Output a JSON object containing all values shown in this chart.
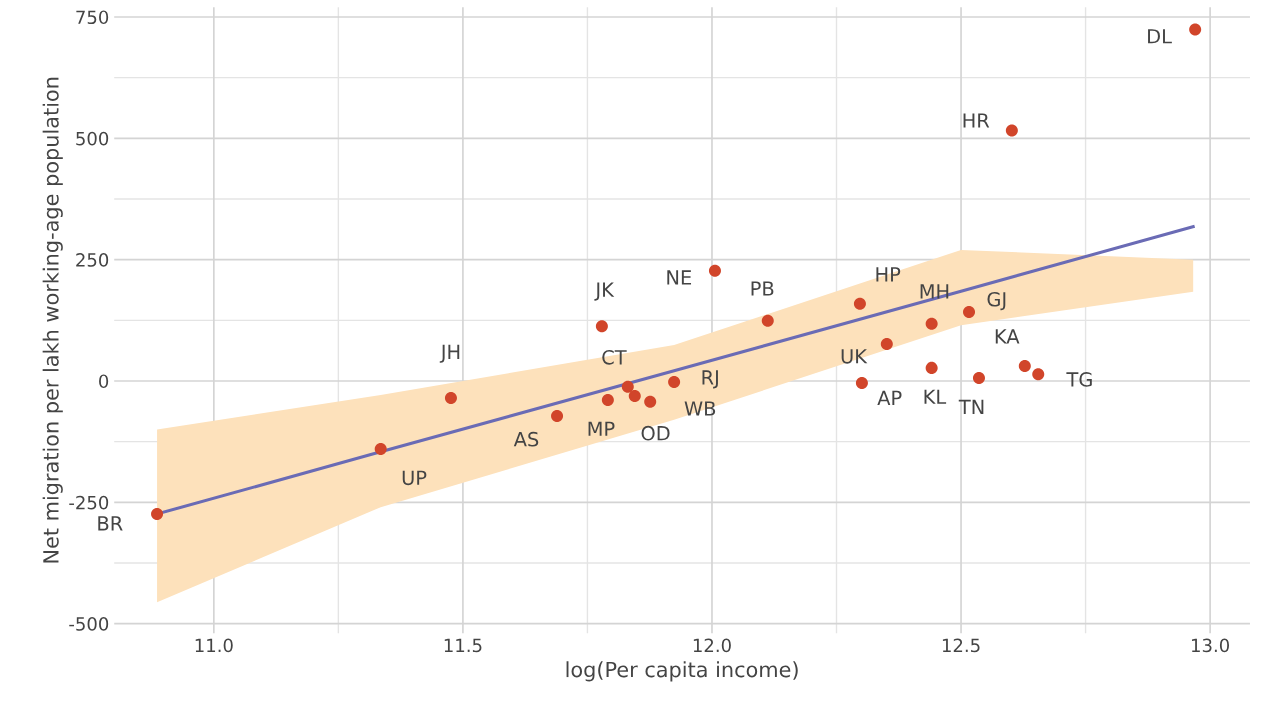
{
  "chart_data": {
    "type": "scatter",
    "xlabel": "log(Per capita income)",
    "ylabel": "Net migration per lakh working-age population",
    "xlim": [
      10.8,
      13.08
    ],
    "ylim": [
      -520,
      770
    ],
    "xticks": [
      {
        "value": 11.0,
        "label": "11.0"
      },
      11.5,
      {
        "value": 12.0,
        "label": "12.0"
      },
      12.5,
      {
        "value": 13.0,
        "label": "13.0"
      }
    ],
    "yticks": [
      -500,
      -250,
      0,
      250,
      500,
      750
    ],
    "grid": true,
    "series": [
      {
        "marker": "circle",
        "color": "#d1452a",
        "x": [
          10.886,
          11.335,
          11.476,
          11.689,
          11.779,
          11.791,
          11.831,
          11.845,
          11.876,
          11.924,
          12.006,
          12.112,
          12.297,
          12.301,
          12.351,
          12.441,
          12.441,
          12.516,
          12.536,
          12.602,
          12.628,
          12.655,
          12.97
        ],
        "values": [
          -274,
          -140,
          -35,
          -72,
          113,
          -39,
          -12,
          -31,
          -43,
          -2,
          227,
          124,
          159,
          -4,
          76,
          118,
          27,
          142,
          6,
          516,
          31,
          14,
          724
        ]
      },
      {
        "type": "line",
        "color": "#6a6bb5",
        "x": [
          10.886,
          11.335,
          11.924,
          12.5,
          12.966
        ],
        "values": [
          -274,
          -146,
          21,
          185,
          318
        ],
        "lower": [
          -456,
          -260,
          -80,
          115,
          184
        ],
        "upper": [
          -100,
          -29,
          74,
          270,
          250
        ]
      }
    ],
    "annotations": [
      {
        "text": "BR",
        "x": 10.886,
        "y": -274
      },
      {
        "text": "UP",
        "x": 11.335,
        "y": -140
      },
      {
        "text": "JH",
        "x": 11.476,
        "y": -35
      },
      {
        "text": "AS",
        "x": 11.689,
        "y": -72
      },
      {
        "text": "JK",
        "x": 11.779,
        "y": 113
      },
      {
        "text": "MP",
        "x": 11.791,
        "y": -39
      },
      {
        "text": "CT",
        "x": 11.831,
        "y": -12
      },
      {
        "text": "OD",
        "x": 11.845,
        "y": -31
      },
      {
        "text": "WB",
        "x": 11.876,
        "y": -43
      },
      {
        "text": "RJ",
        "x": 11.924,
        "y": -2
      },
      {
        "text": "NE",
        "x": 12.006,
        "y": 227
      },
      {
        "text": "PB",
        "x": 12.112,
        "y": 124
      },
      {
        "text": "HP",
        "x": 12.297,
        "y": 159
      },
      {
        "text": "AP",
        "x": 12.301,
        "y": -4
      },
      {
        "text": "UK",
        "x": 12.351,
        "y": 76
      },
      {
        "text": "MH",
        "x": 12.441,
        "y": 118
      },
      {
        "text": "KL",
        "x": 12.441,
        "y": 27
      },
      {
        "text": "GJ",
        "x": 12.516,
        "y": 142
      },
      {
        "text": "TN",
        "x": 12.536,
        "y": 6
      },
      {
        "text": "HR",
        "x": 12.602,
        "y": 516
      },
      {
        "text": "KA",
        "x": 12.628,
        "y": 31
      },
      {
        "text": "TG",
        "x": 12.655,
        "y": 14
      },
      {
        "text": "DL",
        "x": 12.97,
        "y": 724
      }
    ]
  }
}
